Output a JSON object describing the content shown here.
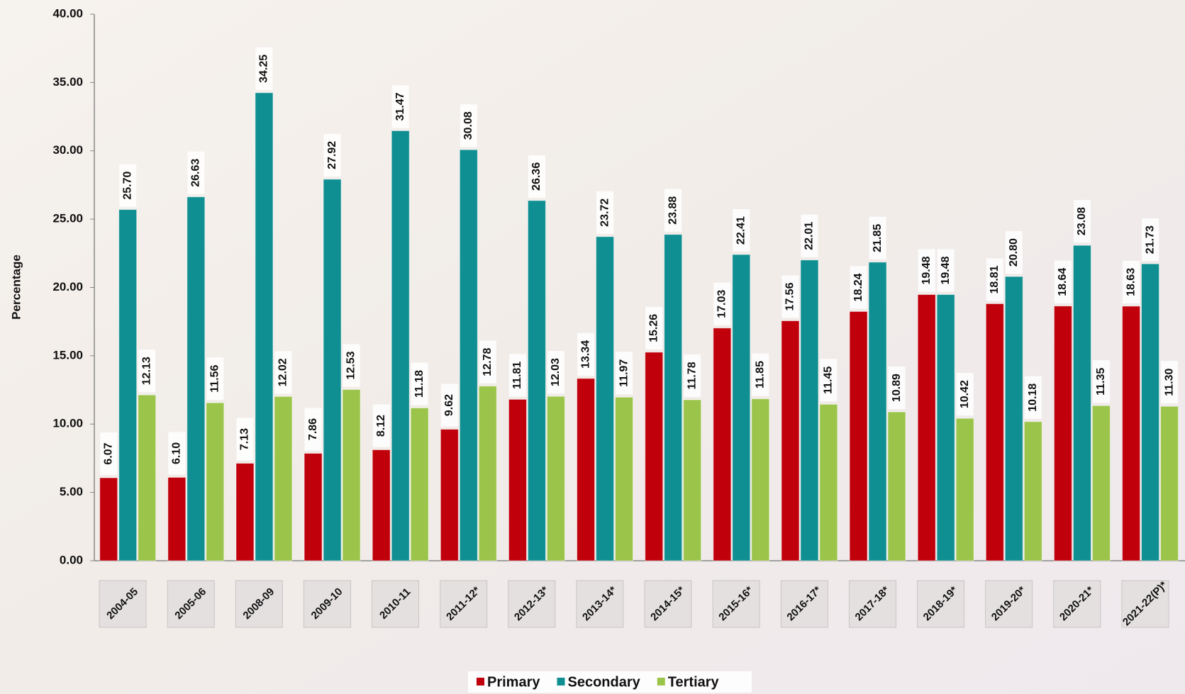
{
  "chart_data": {
    "type": "bar",
    "y_label": "Percentage",
    "categories": [
      "2004-05",
      "2005-06",
      "2008-09",
      "2009-10",
      "2010-11",
      "2011-12*",
      "2012-13*",
      "2013-14*",
      "2014-15*",
      "2015-16*",
      "2016-17*",
      "2017-18*",
      "2018-19*",
      "2019-20*",
      "2020-21*",
      "2021-22(P)*"
    ],
    "series": [
      {
        "name": "Primary",
        "color": "#c0000b",
        "values": [
          6.07,
          6.1,
          7.13,
          7.86,
          8.12,
          9.62,
          11.81,
          13.34,
          15.26,
          17.03,
          17.56,
          18.24,
          19.48,
          18.81,
          18.64,
          18.63
        ],
        "value_labels": [
          "6.07",
          "6.10",
          "7.13",
          "7.86",
          "8.12",
          "9.62",
          "11.81",
          "13.34",
          "15.26",
          "17.03",
          "17.56",
          "18.24",
          "19.48",
          "18.81",
          "18.64",
          "18.63"
        ]
      },
      {
        "name": "Secondary",
        "color": "#0f8f91",
        "values": [
          25.7,
          26.63,
          34.25,
          27.92,
          31.47,
          30.08,
          26.36,
          23.72,
          23.88,
          22.41,
          22.01,
          21.85,
          19.48,
          20.8,
          23.08,
          21.73
        ],
        "value_labels": [
          "25.70",
          "26.63",
          "34.25",
          "27.92",
          "31.47",
          "30.08",
          "26.36",
          "23.72",
          "23.88",
          "22.41",
          "22.01",
          "21.85",
          "19.48",
          "20.80",
          "23.08",
          "21.73"
        ]
      },
      {
        "name": "Tertiary",
        "color": "#9bc44a",
        "values": [
          12.13,
          11.56,
          12.02,
          12.53,
          11.18,
          12.78,
          12.03,
          11.97,
          11.78,
          11.85,
          11.45,
          10.89,
          10.42,
          10.18,
          11.35,
          11.3
        ],
        "value_labels": [
          "12.13",
          "11.56",
          "12.02",
          "12.53",
          "11.18",
          "12.78",
          "12.03",
          "11.97",
          "11.78",
          "11.85",
          "11.45",
          "10.89",
          "10.42",
          "10.18",
          "11.35",
          "11.30"
        ]
      }
    ],
    "ylim": [
      0,
      40
    ],
    "yticks": [
      {
        "value": 0,
        "label": "0.00"
      },
      {
        "value": 5,
        "label": "5.00"
      },
      {
        "value": 10,
        "label": "10.00"
      },
      {
        "value": 15,
        "label": "15.00"
      },
      {
        "value": 20,
        "label": "20.00"
      },
      {
        "value": 25,
        "label": "25.00"
      },
      {
        "value": 30,
        "label": "30.00"
      },
      {
        "value": 35,
        "label": "35.00"
      },
      {
        "value": 40,
        "label": "40.00"
      }
    ],
    "legend": "bottom"
  }
}
